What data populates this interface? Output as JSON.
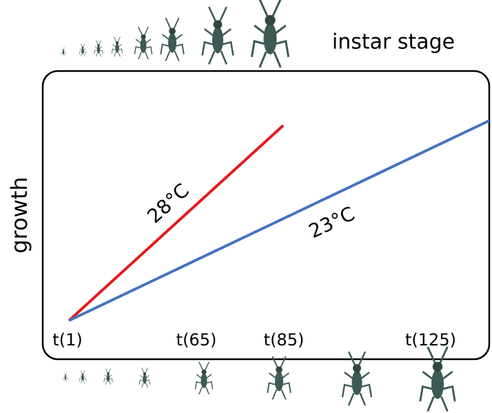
{
  "header": {
    "label": "instar stage"
  },
  "axis": {
    "y_label": "growth"
  },
  "lines": [
    {
      "label": "28°C"
    },
    {
      "label": "23°C"
    }
  ],
  "time_labels": [
    "t(1)",
    "t(65)",
    "t(85)",
    "t(125)"
  ]
}
